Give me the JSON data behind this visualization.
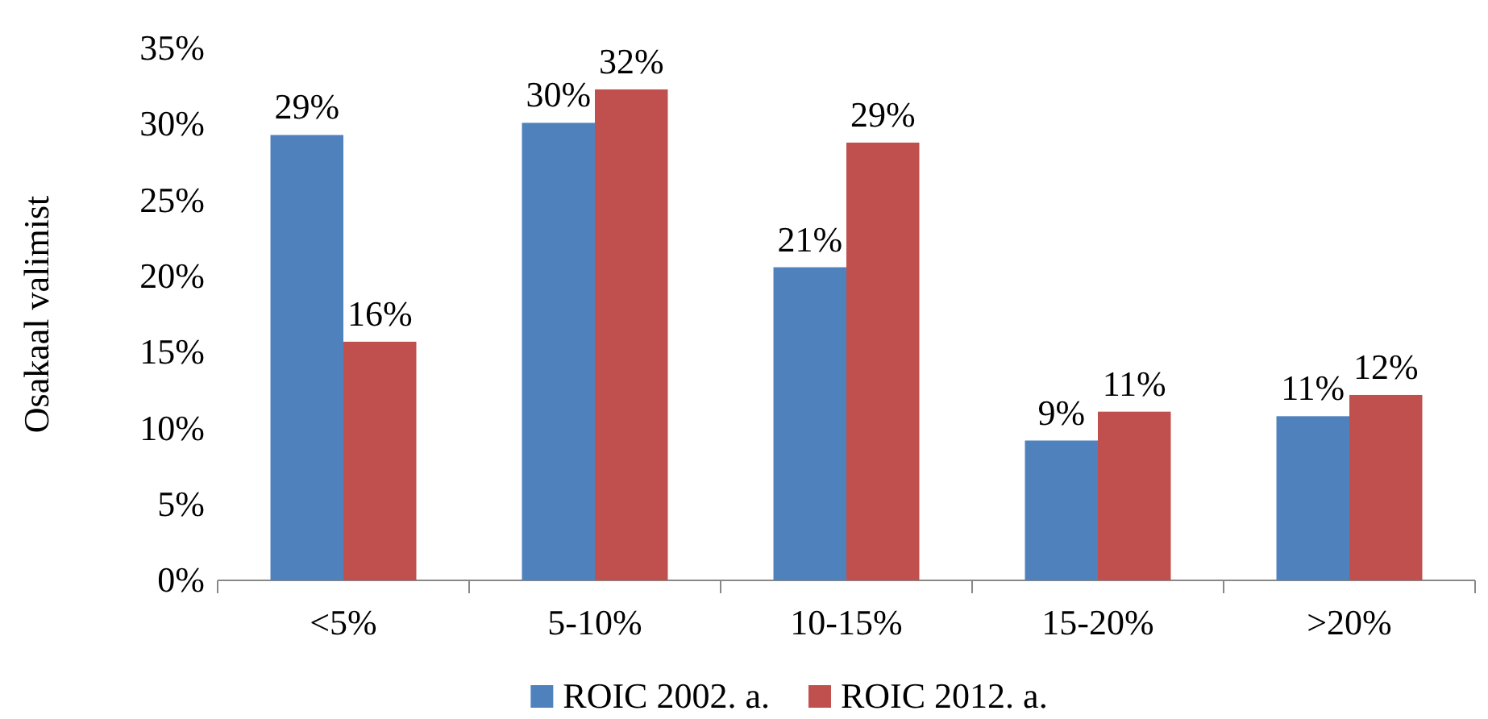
{
  "chart_data": {
    "type": "bar",
    "ylabel": "Osakaal valimist",
    "categories": [
      "<5%",
      "5-10%",
      "10-15%",
      "15-20%",
      ">20%"
    ],
    "series": [
      {
        "name": "ROIC 2002. a.",
        "color": "#4f81bd",
        "values": [
          29.3,
          30.1,
          20.6,
          9.2,
          10.8
        ],
        "value_labels": [
          "29%",
          "30%",
          "21%",
          "9%",
          "11%"
        ]
      },
      {
        "name": "ROIC 2012. a.",
        "color": "#c0504d",
        "values": [
          15.7,
          32.3,
          28.8,
          11.1,
          12.2
        ],
        "value_labels": [
          "16%",
          "32%",
          "29%",
          "11%",
          "12%"
        ]
      }
    ],
    "ylim": [
      0,
      35
    ],
    "yticks": [
      {
        "value": 0,
        "label": "0%"
      },
      {
        "value": 5,
        "label": "5%"
      },
      {
        "value": 10,
        "label": "10%"
      },
      {
        "value": 15,
        "label": "15%"
      },
      {
        "value": 20,
        "label": "20%"
      },
      {
        "value": 25,
        "label": "25%"
      },
      {
        "value": 30,
        "label": "30%"
      },
      {
        "value": 35,
        "label": "35%"
      }
    ],
    "grid": false,
    "legend": "bottom"
  }
}
